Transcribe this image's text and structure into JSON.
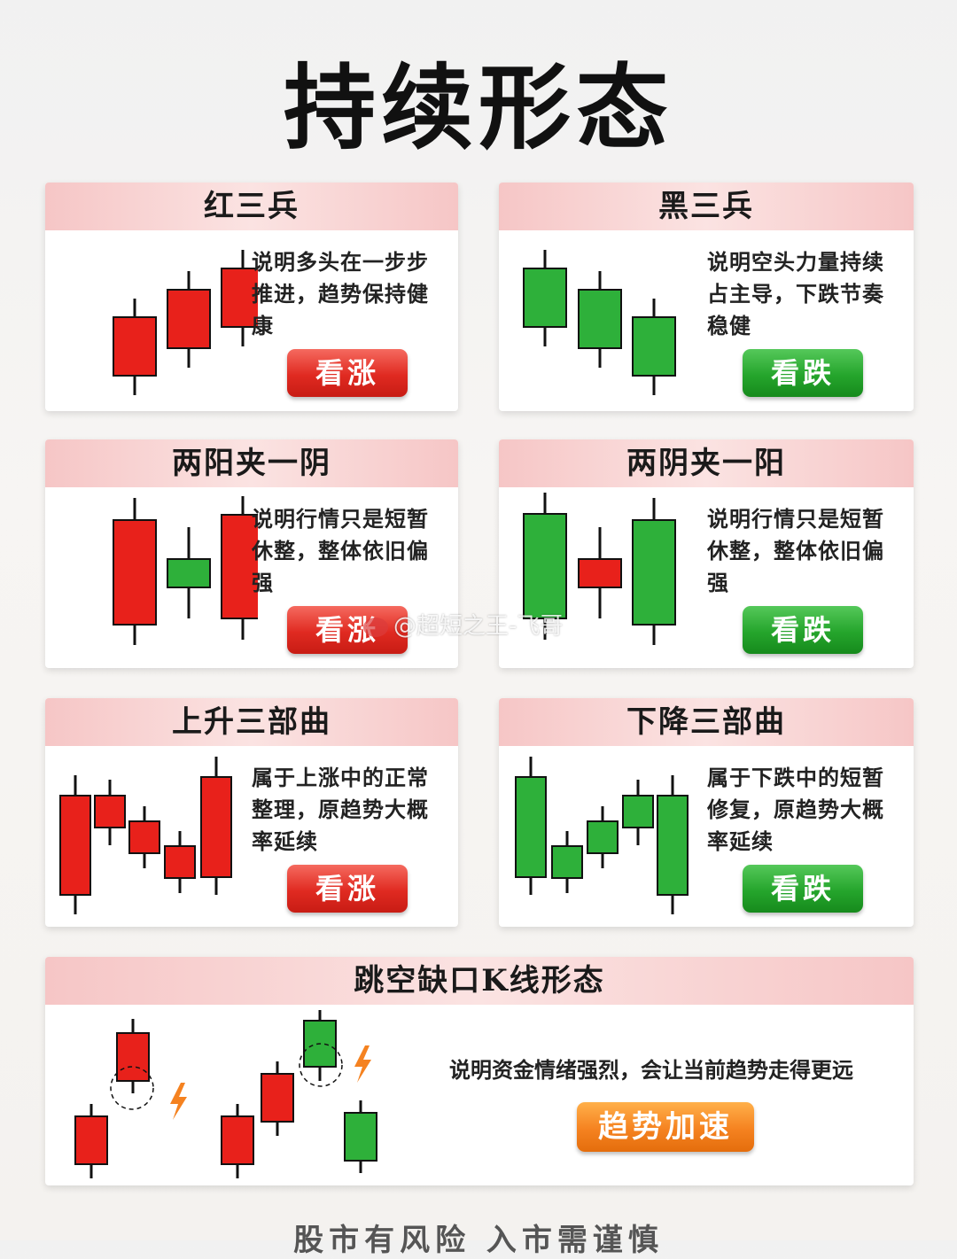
{
  "title": "持续形态",
  "cards": [
    {
      "title": "红三兵",
      "desc": "说明多头在一步步推进，趋势保持健康",
      "verdict": "看涨"
    },
    {
      "title": "黑三兵",
      "desc": "说明空头力量持续占主导，下跌节奏稳健",
      "verdict": "看跌"
    },
    {
      "title": "两阳夹一阴",
      "desc": "说明行情只是短暂休整，整体依旧偏强",
      "verdict": "看涨"
    },
    {
      "title": "两阴夹一阳",
      "desc": "说明行情只是短暂休整，整体依旧偏强",
      "verdict": "看跌"
    },
    {
      "title": "上升三部曲",
      "desc": "属于上涨中的正常整理，原趋势大概率延续",
      "verdict": "看涨"
    },
    {
      "title": "下降三部曲",
      "desc": "属于下跌中的短暂修复，原趋势大概率延续",
      "verdict": "看跌"
    }
  ],
  "gap_card": {
    "title": "跳空缺口K线形态",
    "desc": "说明资金情绪强烈，会让当前趋势走得更远",
    "verdict": "趋势加速"
  },
  "watermark": "@超短之王-飞哥",
  "footer": "股市有风险 入市需谨慎",
  "colors": {
    "bull": "#e8211b",
    "bear": "#2eb03a",
    "header_pink": "#f6c6c6",
    "accent_orange": "#f58220"
  },
  "icons": [
    "lightning-icon",
    "gap-circle-icon"
  ]
}
